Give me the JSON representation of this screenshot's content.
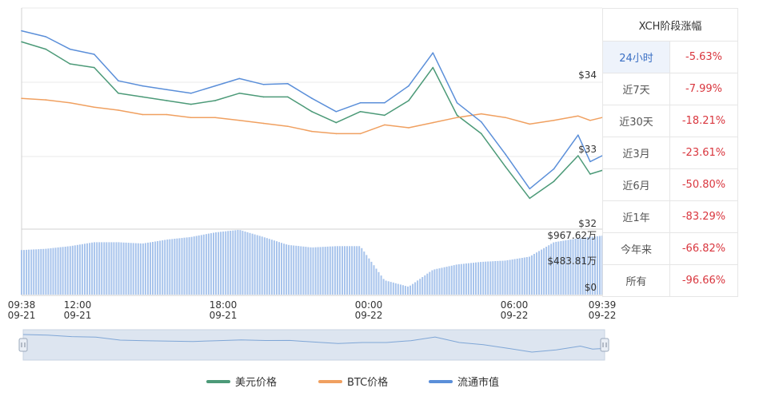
{
  "chart_data": {
    "type": "line",
    "yticks": [
      "$34",
      "$33",
      "$32"
    ],
    "volume_ticks": [
      "$967.62万",
      "$483.81万",
      "$0"
    ],
    "xticks": [
      {
        "time": "09:38",
        "date": "09-21"
      },
      {
        "time": "12:00",
        "date": "09-21"
      },
      {
        "time": "18:00",
        "date": "09-21"
      },
      {
        "time": "00:00",
        "date": "09-22"
      },
      {
        "time": "06:00",
        "date": "09-22"
      },
      {
        "time": "09:39",
        "date": "09-22"
      }
    ],
    "hours": [
      0,
      1,
      2,
      3,
      4,
      5,
      6,
      7,
      8,
      9,
      10,
      11,
      12,
      13,
      14,
      15,
      16,
      17,
      18,
      19,
      20,
      21,
      22,
      23,
      23.5,
      24
    ],
    "series": [
      {
        "name": "美元价格",
        "color": "#4c9a78",
        "values": [
          34.55,
          34.45,
          34.25,
          34.2,
          33.85,
          33.8,
          33.75,
          33.7,
          33.75,
          33.85,
          33.8,
          33.8,
          33.6,
          33.45,
          33.6,
          33.55,
          33.75,
          34.2,
          33.55,
          33.3,
          32.85,
          32.42,
          32.65,
          33.0,
          32.75,
          32.8
        ]
      },
      {
        "name": "BTC价格",
        "color": "#f0a060",
        "values": [
          33.78,
          33.76,
          33.72,
          33.66,
          33.62,
          33.56,
          33.56,
          33.52,
          33.52,
          33.48,
          33.44,
          33.4,
          33.33,
          33.3,
          33.3,
          33.42,
          33.38,
          33.45,
          33.52,
          33.57,
          33.52,
          33.43,
          33.48,
          33.54,
          33.48,
          33.52
        ]
      },
      {
        "name": "流通市值",
        "color": "#5b8fd9",
        "values": [
          34.7,
          34.62,
          34.45,
          34.38,
          34.02,
          33.95,
          33.9,
          33.85,
          33.95,
          34.05,
          33.97,
          33.98,
          33.78,
          33.6,
          33.72,
          33.72,
          33.95,
          34.4,
          33.72,
          33.46,
          33.02,
          32.55,
          32.82,
          33.28,
          32.92,
          33.0
        ]
      }
    ],
    "volume": [
      0.68,
      0.7,
      0.74,
      0.8,
      0.8,
      0.78,
      0.84,
      0.88,
      0.95,
      0.99,
      0.88,
      0.76,
      0.72,
      0.74,
      0.74,
      0.22,
      0.12,
      0.38,
      0.46,
      0.5,
      0.52,
      0.58,
      0.8,
      0.86,
      0.88,
      0.9
    ]
  },
  "stage_table": {
    "title": "XCH阶段涨幅",
    "rows": [
      {
        "period": "24小时",
        "change": "-5.63%"
      },
      {
        "period": "近7天",
        "change": "-7.99%"
      },
      {
        "period": "近30天",
        "change": "-18.21%"
      },
      {
        "period": "近3月",
        "change": "-23.61%"
      },
      {
        "period": "近6月",
        "change": "-50.80%"
      },
      {
        "period": "近1年",
        "change": "-83.29%"
      },
      {
        "period": "今年来",
        "change": "-66.82%"
      },
      {
        "period": "所有",
        "change": "-96.66%"
      }
    ]
  },
  "legend": [
    {
      "label": "美元价格",
      "color": "#4c9a78"
    },
    {
      "label": "BTC价格",
      "color": "#f0a060"
    },
    {
      "label": "流通市值",
      "color": "#5b8fd9"
    }
  ]
}
